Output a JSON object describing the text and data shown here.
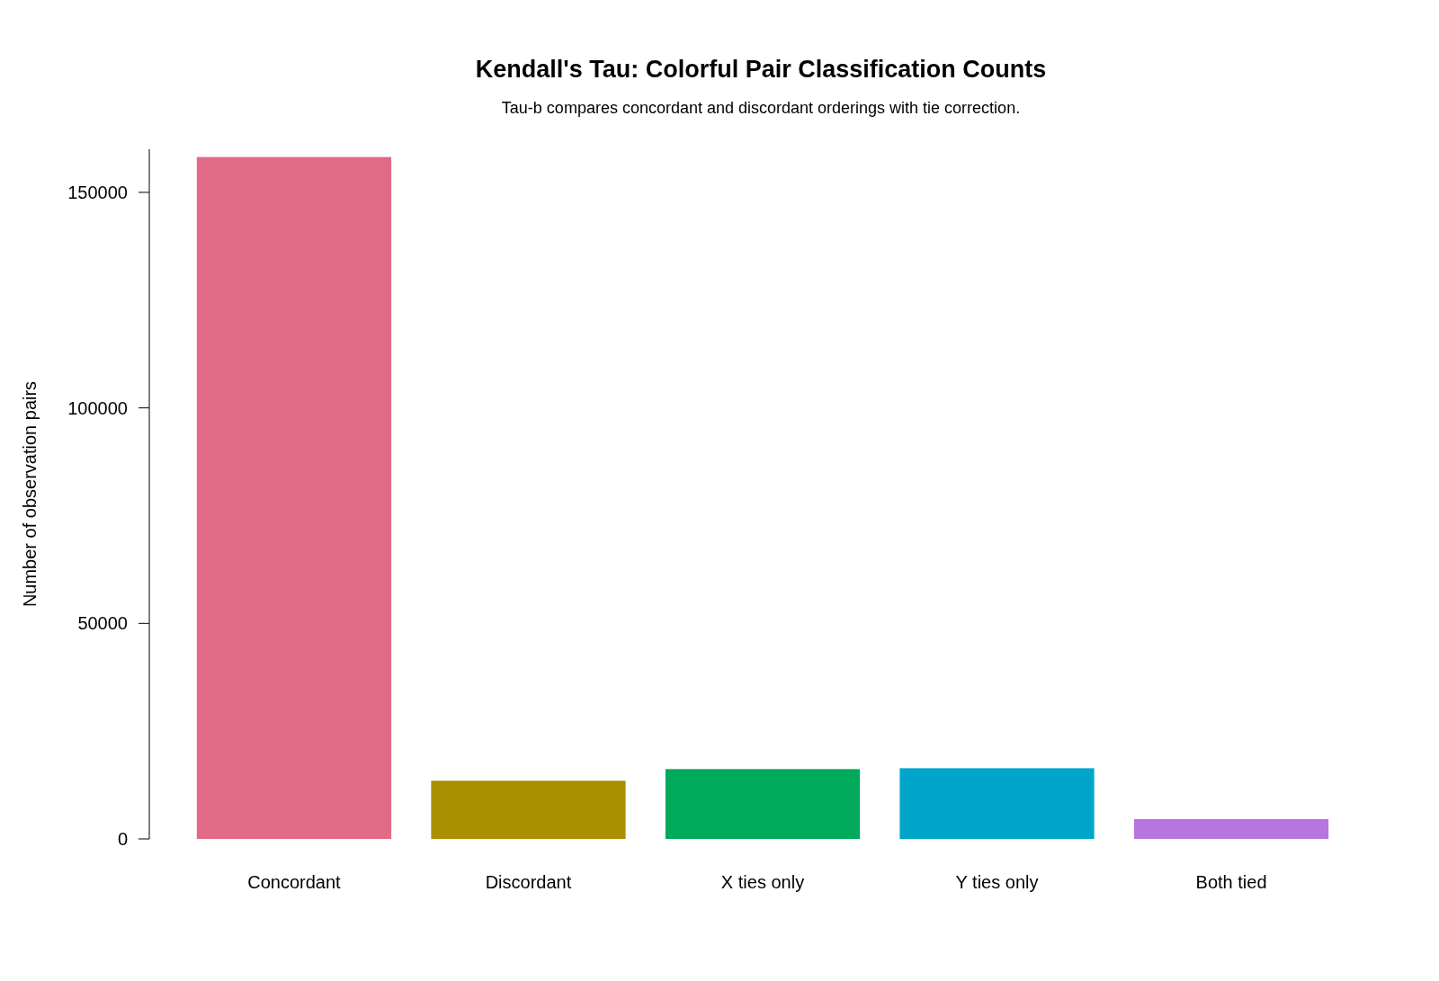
{
  "chart_data": {
    "type": "bar",
    "title": "Kendall's Tau: Colorful Pair Classification Counts",
    "subtitle": "Tau-b compares concordant and discordant orderings with tie correction.",
    "ylabel": "Number of observation pairs",
    "categories": [
      "Concordant",
      "Discordant",
      "X ties only",
      "Y ties only",
      "Both tied"
    ],
    "values": [
      158200,
      13500,
      16200,
      16400,
      4600
    ],
    "colors": [
      "#e16a86",
      "#aa9000",
      "#00aa5a",
      "#00a6ca",
      "#b675e0"
    ],
    "ylim": [
      0,
      160000
    ],
    "yticks": [
      0,
      50000,
      100000,
      150000
    ],
    "grid": false
  }
}
